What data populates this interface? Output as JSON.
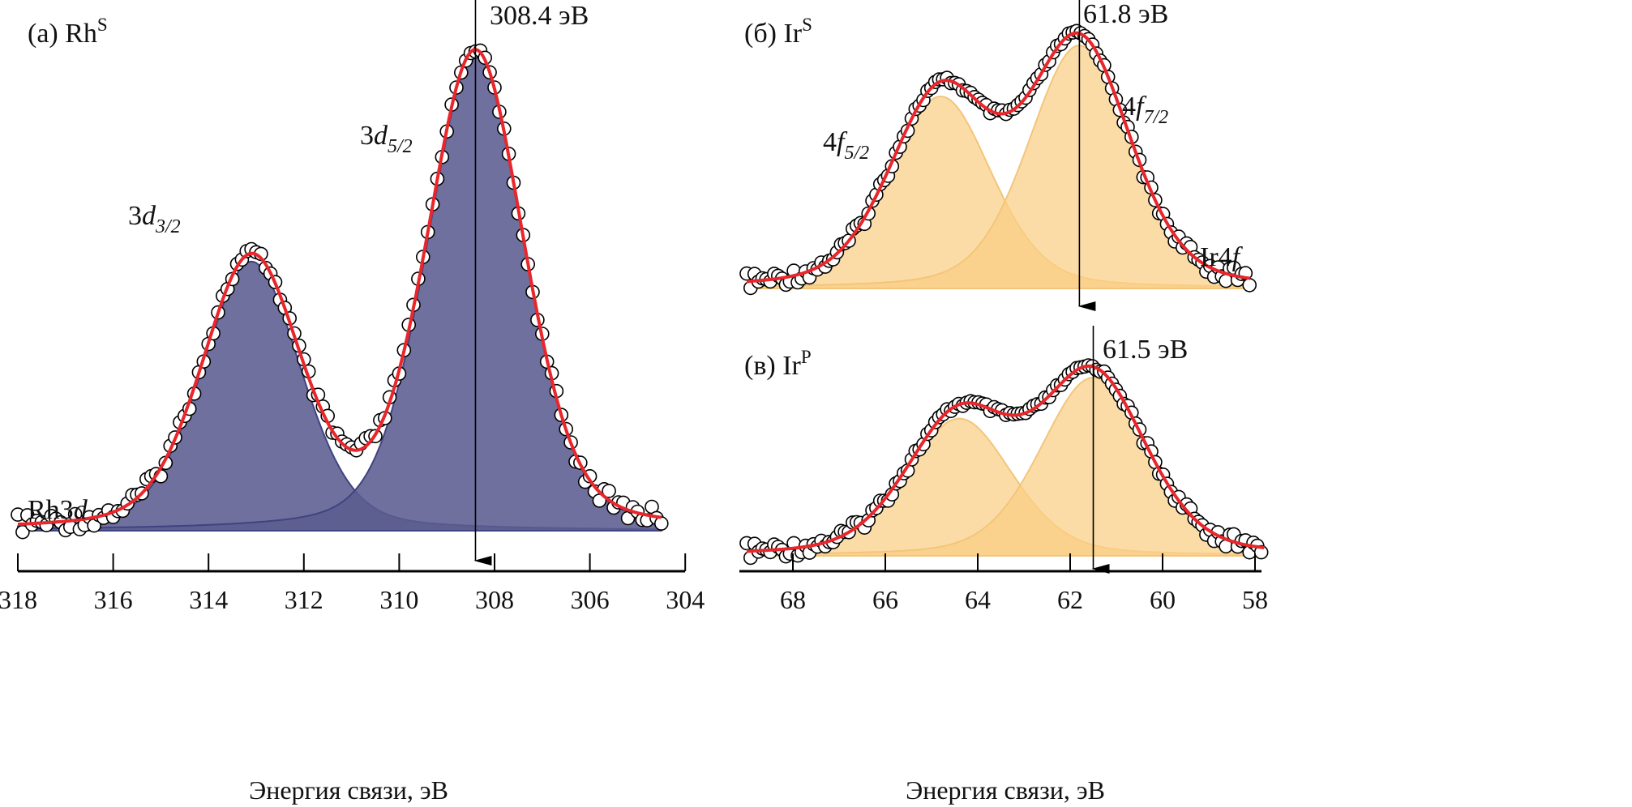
{
  "chart_data": [
    {
      "type": "line",
      "id": "a",
      "panel_label": {
        "prefix": "(а) Rh",
        "sup": "S"
      },
      "series_label": {
        "main": "Rh3",
        "italic": "d"
      },
      "xlabel": "Энергия связи, эВ",
      "xlim": [
        318,
        304
      ],
      "xticks": [
        "318",
        "316",
        "314",
        "312",
        "310",
        "308",
        "306",
        "304"
      ],
      "xtick_values": [
        318,
        316,
        314,
        312,
        310,
        308,
        306,
        304
      ],
      "annotation": {
        "text": "308.4 эВ",
        "x": 308.4
      },
      "fill_color": "#5b5c8f",
      "fit_color": "#e8262b",
      "components": [
        {
          "name": "3d3/2",
          "label": {
            "main": "3",
            "italic": "d",
            "sub": "3/2"
          },
          "center": 313.1,
          "fwhm": 2.45,
          "height": 0.565
        },
        {
          "name": "3d5/2",
          "label": {
            "main": "3",
            "italic": "d",
            "sub": "5/2"
          },
          "center": 308.4,
          "fwhm": 2.4,
          "height": 1.0
        }
      ],
      "data_range": [
        318,
        304.5
      ]
    },
    {
      "type": "line",
      "id": "b",
      "panel_label": {
        "prefix": "(б) Ir",
        "sup": "S"
      },
      "series_label": {
        "main": "Ir4",
        "italic": "f"
      },
      "annotation": {
        "text": "61.8 эВ",
        "x": 61.8
      },
      "fill_color": "#fbcf83",
      "fit_color": "#e8262b",
      "components": [
        {
          "name": "4f5/2",
          "label": {
            "main": "4",
            "italic": "f",
            "sub": "5/2"
          },
          "center": 64.8,
          "fwhm": 2.6,
          "height": 0.79
        },
        {
          "name": "4f7/2",
          "label": {
            "main": "4",
            "italic": "f",
            "sub": "7/2"
          },
          "center": 61.8,
          "fwhm": 2.6,
          "height": 1.0
        }
      ],
      "data_range": [
        69,
        58.1
      ]
    },
    {
      "type": "line",
      "id": "c",
      "panel_label": {
        "prefix": "(в) Ir",
        "sup": "P"
      },
      "xlabel": "Энергия связи, эВ",
      "xlim": [
        69.2,
        57.8
      ],
      "xticks": [
        "68",
        "66",
        "64",
        "62",
        "60",
        "58"
      ],
      "xtick_values": [
        68,
        66,
        64,
        62,
        60,
        58
      ],
      "annotation": {
        "text": "61.5 эВ",
        "x": 61.5
      },
      "fill_color": "#fbcf83",
      "fit_color": "#e8262b",
      "components": [
        {
          "name": "4f5/2",
          "center": 64.4,
          "fwhm": 2.7,
          "height": 0.77
        },
        {
          "name": "4f7/2",
          "center": 61.5,
          "fwhm": 2.7,
          "height": 1.0
        }
      ],
      "data_range": [
        69,
        57.8
      ]
    }
  ]
}
